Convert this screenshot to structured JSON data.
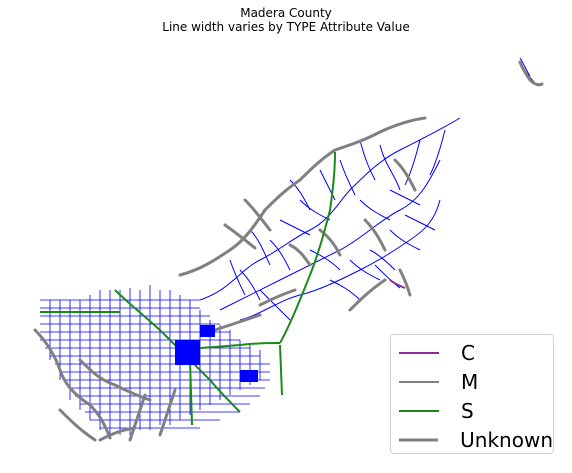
{
  "title": "Madera County",
  "subtitle": "Line width varies by TYPE Attribute Value",
  "legend": [
    {
      "label": "C",
      "color": "#8b2f97",
      "width": 2
    },
    {
      "label": "M",
      "color": "#000000",
      "width": 1
    },
    {
      "label": "S",
      "color": "#1a8a1a",
      "width": 2
    },
    {
      "label": "Unknown",
      "color": "#808080",
      "width": 3
    }
  ],
  "colors": {
    "minor_road": "#0000ff",
    "unknown_road": "#808080",
    "state_road": "#1a8a1a",
    "county_road": "#8b2f97"
  }
}
